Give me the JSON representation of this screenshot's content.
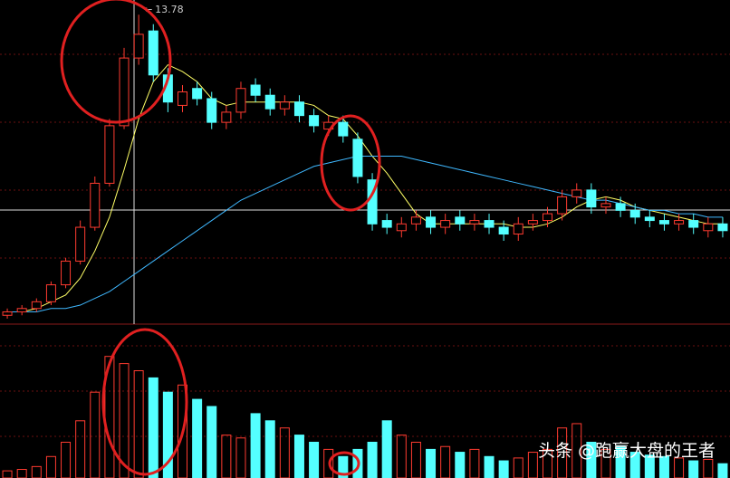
{
  "chart_data": {
    "type": "candlestick",
    "up_color": "#ff3b30",
    "down_color": "#54ffff",
    "ylim": [
      4.8,
      14.0
    ],
    "volume_ylim": [
      0,
      100
    ],
    "open": [
      4.9,
      5.0,
      5.1,
      5.3,
      5.8,
      6.5,
      7.5,
      8.8,
      10.5,
      12.5,
      13.3,
      12.0,
      11.1,
      11.6,
      11.3,
      10.6,
      10.9,
      11.7,
      11.4,
      11.0,
      11.2,
      10.8,
      10.4,
      10.6,
      10.1,
      8.9,
      7.7,
      7.4,
      7.6,
      7.8,
      7.5,
      7.8,
      7.6,
      7.7,
      7.5,
      7.3,
      7.6,
      7.7,
      7.9,
      8.4,
      8.6,
      8.1,
      8.2,
      8.0,
      7.8,
      7.7,
      7.6,
      7.7,
      7.4,
      7.6
    ],
    "high": [
      5.1,
      5.2,
      5.4,
      5.9,
      6.6,
      7.7,
      9.0,
      10.7,
      12.8,
      13.78,
      13.5,
      12.2,
      11.7,
      11.8,
      11.5,
      11.1,
      11.8,
      11.9,
      11.6,
      11.4,
      11.4,
      11.0,
      10.8,
      10.8,
      10.3,
      9.1,
      7.9,
      7.8,
      8.0,
      8.0,
      7.9,
      8.0,
      7.9,
      7.9,
      7.7,
      7.8,
      7.9,
      8.1,
      8.6,
      8.8,
      8.8,
      8.4,
      8.4,
      8.2,
      8.0,
      7.9,
      7.9,
      7.9,
      7.8,
      7.8
    ],
    "low": [
      4.8,
      4.9,
      5.0,
      5.2,
      5.7,
      6.4,
      7.4,
      8.7,
      10.4,
      12.3,
      11.8,
      10.9,
      10.9,
      11.1,
      10.4,
      10.4,
      10.7,
      11.2,
      10.8,
      10.8,
      10.6,
      10.3,
      10.2,
      10.0,
      8.8,
      7.4,
      7.3,
      7.2,
      7.4,
      7.3,
      7.3,
      7.4,
      7.4,
      7.3,
      7.1,
      7.1,
      7.4,
      7.5,
      7.7,
      8.2,
      7.9,
      7.9,
      7.8,
      7.6,
      7.5,
      7.4,
      7.4,
      7.3,
      7.2,
      7.2
    ],
    "close": [
      5.0,
      5.1,
      5.3,
      5.8,
      6.5,
      7.5,
      8.8,
      10.5,
      12.5,
      13.2,
      12.0,
      11.2,
      11.5,
      11.3,
      10.6,
      10.9,
      11.6,
      11.4,
      11.0,
      11.2,
      10.8,
      10.5,
      10.6,
      10.2,
      9.0,
      7.6,
      7.5,
      7.6,
      7.8,
      7.5,
      7.7,
      7.6,
      7.7,
      7.5,
      7.3,
      7.6,
      7.7,
      7.9,
      8.4,
      8.6,
      8.1,
      8.2,
      8.0,
      7.8,
      7.7,
      7.6,
      7.7,
      7.5,
      7.6,
      7.4
    ],
    "volume": [
      5,
      6,
      8,
      15,
      25,
      40,
      60,
      85,
      80,
      75,
      70,
      60,
      65,
      55,
      50,
      30,
      28,
      45,
      40,
      35,
      30,
      25,
      20,
      15,
      20,
      25,
      40,
      30,
      25,
      20,
      22,
      18,
      20,
      15,
      12,
      14,
      18,
      20,
      35,
      38,
      25,
      20,
      22,
      18,
      16,
      15,
      14,
      12,
      13,
      10
    ],
    "ma": [
      {
        "color": "#ffff66",
        "values": [
          5.0,
          5.0,
          5.1,
          5.3,
          5.5,
          6.0,
          6.8,
          7.8,
          9.2,
          10.7,
          11.8,
          12.3,
          12.1,
          11.8,
          11.3,
          11.1,
          11.2,
          11.2,
          11.2,
          11.2,
          11.2,
          11.1,
          10.8,
          10.7,
          10.2,
          9.6,
          9.1,
          8.5,
          7.9,
          7.6,
          7.6,
          7.6,
          7.6,
          7.6,
          7.6,
          7.5,
          7.5,
          7.6,
          7.8,
          8.1,
          8.3,
          8.4,
          8.3,
          8.1,
          8.0,
          7.9,
          7.8,
          7.7,
          7.6,
          7.6
        ]
      },
      {
        "color": "#3fb8ff",
        "values": [
          5.0,
          5.0,
          5.0,
          5.1,
          5.1,
          5.2,
          5.4,
          5.6,
          5.9,
          6.2,
          6.5,
          6.8,
          7.1,
          7.4,
          7.7,
          8.0,
          8.3,
          8.5,
          8.7,
          8.9,
          9.1,
          9.3,
          9.4,
          9.5,
          9.6,
          9.6,
          9.6,
          9.6,
          9.5,
          9.4,
          9.3,
          9.2,
          9.1,
          9.0,
          8.9,
          8.8,
          8.7,
          8.6,
          8.5,
          8.4,
          8.3,
          8.3,
          8.2,
          8.1,
          8.0,
          8.0,
          7.9,
          7.9,
          7.8,
          7.8
        ]
      }
    ],
    "watermark": "头条 @跑赢大盘的王者"
  }
}
